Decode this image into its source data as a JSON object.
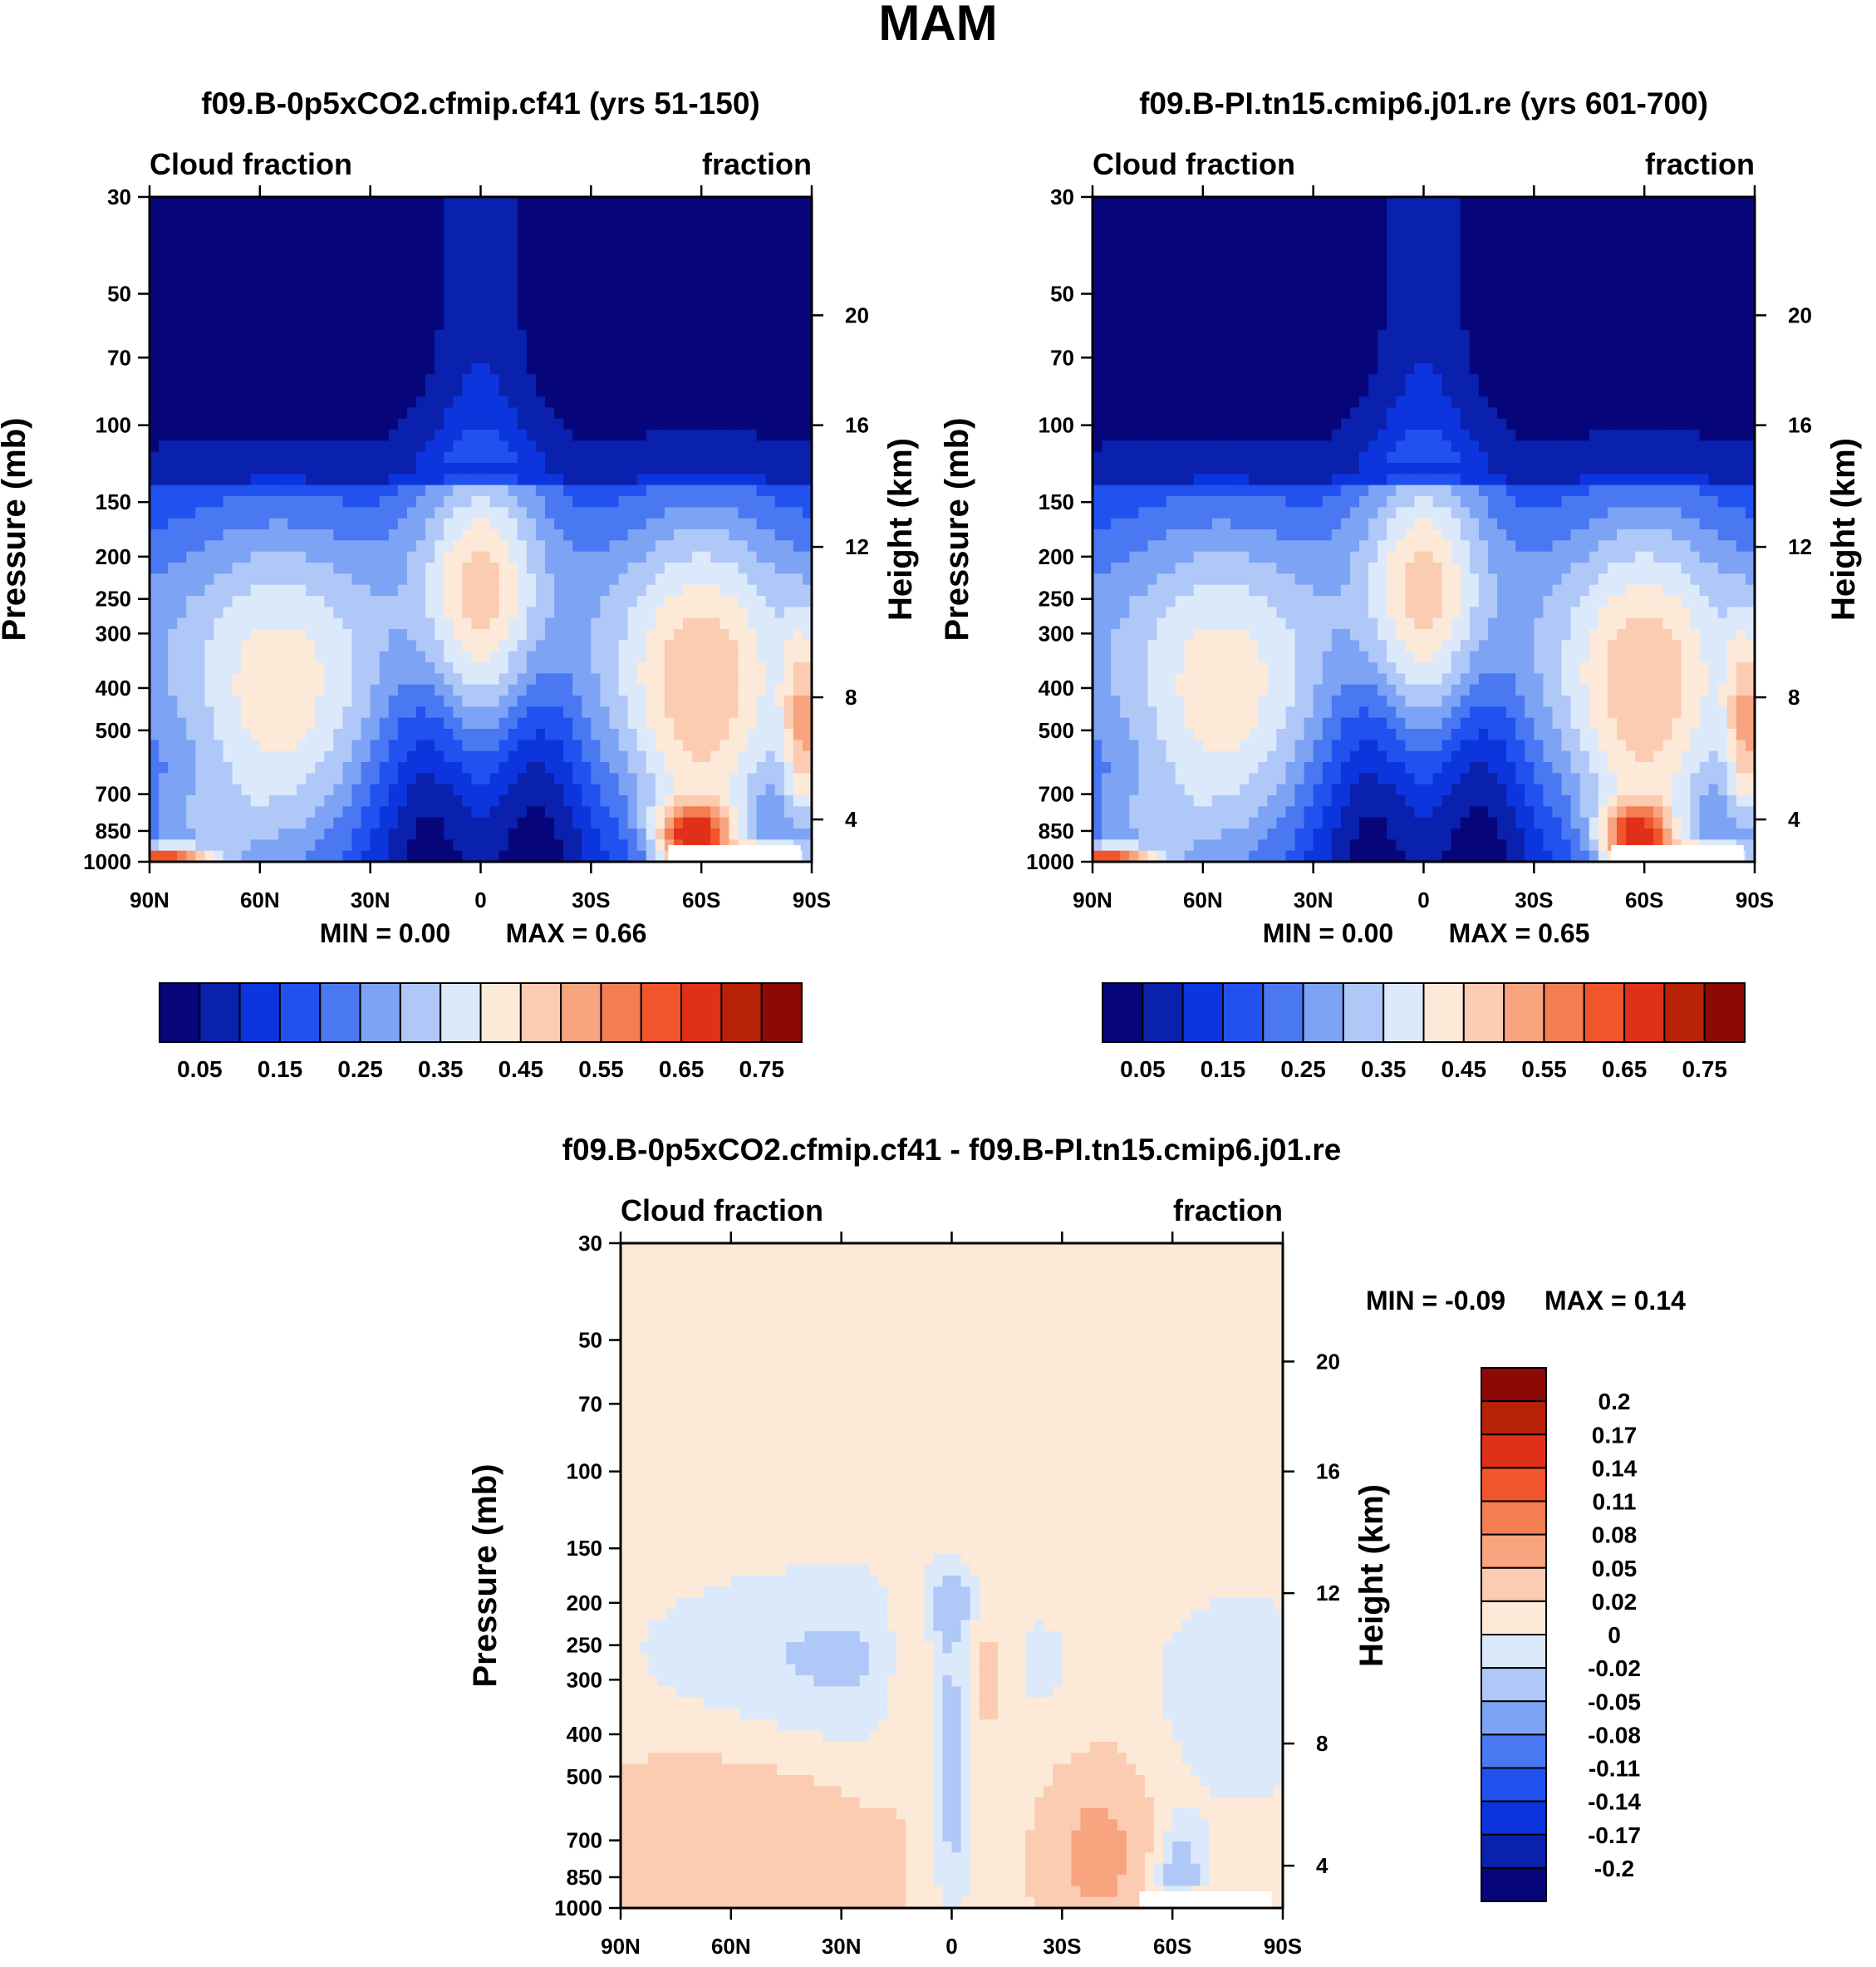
{
  "figure_title": "MAM",
  "colors": {
    "seq": [
      "#06067a",
      "#0a21ad",
      "#0c35de",
      "#2152f0",
      "#4a78f2",
      "#7da3f5",
      "#b0c8f8",
      "#dbe9fb",
      "#fde9d8",
      "#fbcbb2",
      "#f8a47f",
      "#f57d52",
      "#f1552c",
      "#e0301a",
      "#b82308",
      "#8b0a05"
    ],
    "diff": [
      "#06067a",
      "#0a21ad",
      "#0c35de",
      "#2152f0",
      "#4a78f2",
      "#7da3f5",
      "#b0c8f8",
      "#dbe9fb",
      "#fde9d8",
      "#fbcbb2",
      "#f8a47f",
      "#f57d52",
      "#f1552c",
      "#e0301a",
      "#b82308",
      "#8b0a05"
    ]
  },
  "panels": [
    {
      "title": "f09.B-0p5xCO2.cfmip.cf41 (yrs 51-150)",
      "left_label": "Cloud fraction",
      "right_label": "fraction",
      "min_text": "MIN =    0.00",
      "max_text": "MAX =    0.66"
    },
    {
      "title": "f09.B-PI.tn15.cmip6.j01.re (yrs 601-700)",
      "left_label": "Cloud fraction",
      "right_label": "fraction",
      "min_text": "MIN =    0.00",
      "max_text": "MAX =    0.65"
    },
    {
      "title": "f09.B-0p5xCO2.cfmip.cf41 - f09.B-PI.tn15.cmip6.j01.re",
      "left_label": "Cloud fraction",
      "right_label": "fraction",
      "min_text": "MIN =  -0.09",
      "max_text": "MAX =    0.14"
    }
  ],
  "chart_data": [
    {
      "type": "heatmap",
      "title": "f09.B-0p5xCO2.cfmip.cf41 (yrs 51-150)",
      "xlabel": "",
      "ylabel": "Pressure (mb)",
      "y2label": "Height (km)",
      "x_ticks": [
        "90N",
        "60N",
        "30N",
        "0",
        "30S",
        "60S",
        "90S"
      ],
      "y_ticks": [
        30,
        50,
        70,
        100,
        150,
        200,
        250,
        300,
        400,
        500,
        700,
        850,
        1000
      ],
      "y_ticks_labels": [
        "30",
        "50",
        "70",
        "100",
        "150",
        "200",
        "250",
        "300",
        "400",
        "500",
        "700",
        "850",
        "1000"
      ],
      "height_ticks": [
        "20",
        "16",
        "12",
        "8",
        "4"
      ],
      "xlim": [
        -90,
        90
      ],
      "ylim": [
        1000,
        30
      ],
      "colorbar_labels": [
        "0.05",
        "0.15",
        "0.25",
        "0.35",
        "0.45",
        "0.55",
        "0.65",
        "0.75"
      ],
      "levels": [
        0.05,
        0.1,
        0.15,
        0.2,
        0.25,
        0.3,
        0.35,
        0.4,
        0.45,
        0.5,
        0.55,
        0.6,
        0.65,
        0.7,
        0.75
      ],
      "min": 0.0,
      "max": 0.66
    },
    {
      "type": "heatmap",
      "title": "f09.B-PI.tn15.cmip6.j01.re (yrs 601-700)",
      "xlabel": "",
      "ylabel": "Pressure (mb)",
      "y2label": "Height (km)",
      "x_ticks": [
        "90N",
        "60N",
        "30N",
        "0",
        "30S",
        "60S",
        "90S"
      ],
      "y_ticks": [
        30,
        50,
        70,
        100,
        150,
        200,
        250,
        300,
        400,
        500,
        700,
        850,
        1000
      ],
      "y_ticks_labels": [
        "30",
        "50",
        "70",
        "100",
        "150",
        "200",
        "250",
        "300",
        "400",
        "500",
        "700",
        "850",
        "1000"
      ],
      "height_ticks": [
        "20",
        "16",
        "12",
        "8",
        "4"
      ],
      "xlim": [
        -90,
        90
      ],
      "ylim": [
        1000,
        30
      ],
      "colorbar_labels": [
        "0.05",
        "0.15",
        "0.25",
        "0.35",
        "0.45",
        "0.55",
        "0.65",
        "0.75"
      ],
      "levels": [
        0.05,
        0.1,
        0.15,
        0.2,
        0.25,
        0.3,
        0.35,
        0.4,
        0.45,
        0.5,
        0.55,
        0.6,
        0.65,
        0.7,
        0.75
      ],
      "min": 0.0,
      "max": 0.65
    },
    {
      "type": "heatmap",
      "title": "f09.B-0p5xCO2.cfmip.cf41 - f09.B-PI.tn15.cmip6.j01.re",
      "xlabel": "",
      "ylabel": "Pressure (mb)",
      "y2label": "Height (km)",
      "x_ticks": [
        "90N",
        "60N",
        "30N",
        "0",
        "30S",
        "60S",
        "90S"
      ],
      "y_ticks": [
        30,
        50,
        70,
        100,
        150,
        200,
        250,
        300,
        400,
        500,
        700,
        850,
        1000
      ],
      "y_ticks_labels": [
        "30",
        "50",
        "70",
        "100",
        "150",
        "200",
        "250",
        "300",
        "400",
        "500",
        "700",
        "850",
        "1000"
      ],
      "height_ticks": [
        "20",
        "16",
        "12",
        "8",
        "4"
      ],
      "xlim": [
        -90,
        90
      ],
      "ylim": [
        1000,
        30
      ],
      "colorbar_labels": [
        "0.2",
        "0.17",
        "0.14",
        "0.11",
        "0.08",
        "0.05",
        "0.02",
        "0",
        "-0.02",
        "-0.05",
        "-0.08",
        "-0.11",
        "-0.14",
        "-0.17",
        "-0.2"
      ],
      "levels": [
        -0.2,
        -0.17,
        -0.14,
        -0.11,
        -0.08,
        -0.05,
        -0.02,
        0,
        0.02,
        0.05,
        0.08,
        0.11,
        0.14,
        0.17,
        0.2
      ],
      "min": -0.09,
      "max": 0.14
    }
  ]
}
